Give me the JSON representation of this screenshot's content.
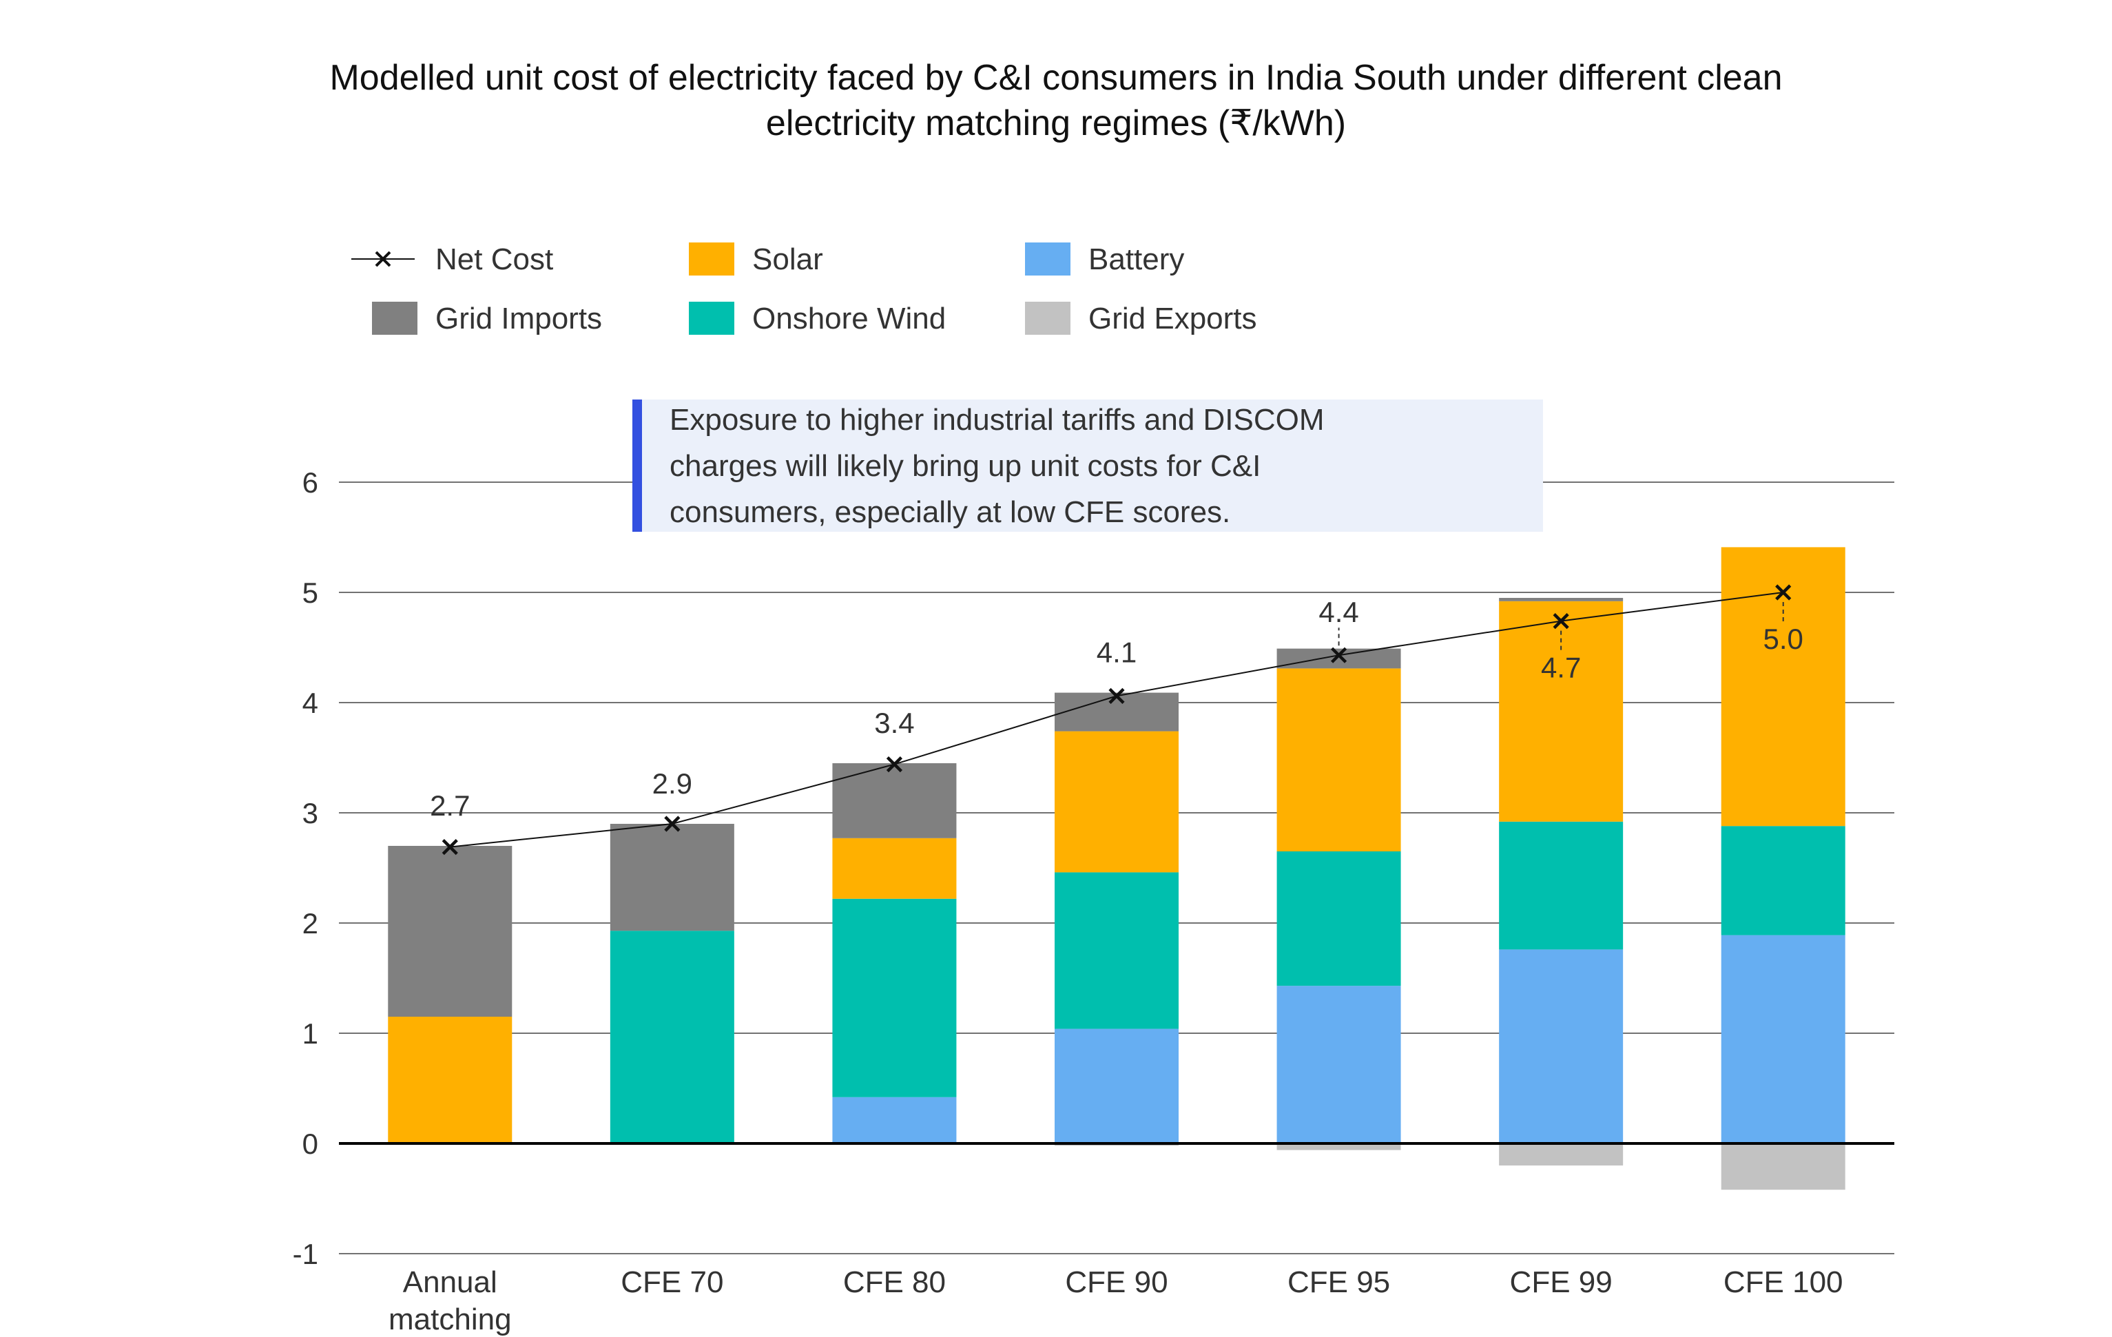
{
  "chart_data": {
    "type": "bar",
    "stacked": true,
    "title_lines": [
      "Modelled unit cost of electricity faced by C&I consumers in India South under different clean",
      "electricity matching regimes (₹/kWh)"
    ],
    "categories": [
      [
        "Annual",
        "matching"
      ],
      [
        "CFE 70"
      ],
      [
        "CFE 80"
      ],
      [
        "CFE 90"
      ],
      [
        "CFE 95"
      ],
      [
        "CFE 99"
      ],
      [
        "CFE 100"
      ]
    ],
    "ylim": [
      -1,
      6
    ],
    "yticks": [
      -1,
      0,
      1,
      2,
      3,
      4,
      5,
      6
    ],
    "grid": true,
    "legend_position": "top-left",
    "series": [
      {
        "name": "Battery",
        "color": "#66AEF2",
        "values": [
          0,
          0,
          0.42,
          1.04,
          1.43,
          1.76,
          1.89
        ]
      },
      {
        "name": "Onshore Wind",
        "color": "#00BFAE",
        "values": [
          0,
          1.93,
          1.8,
          1.42,
          1.22,
          1.16,
          0.99
        ]
      },
      {
        "name": "Solar",
        "color": "#FFB000",
        "values": [
          1.15,
          0,
          0.55,
          1.28,
          1.66,
          2.0,
          2.53
        ]
      },
      {
        "name": "Grid Imports",
        "color": "#808080",
        "values": [
          1.55,
          0.97,
          0.68,
          0.35,
          0.18,
          0.03,
          0.0
        ]
      },
      {
        "name": "Grid Exports",
        "color": "#C2C2C2",
        "values": [
          0,
          0,
          0,
          -0.02,
          -0.06,
          -0.2,
          -0.42
        ]
      }
    ],
    "net_cost": {
      "name": "Net Cost",
      "color": "#111111",
      "values": [
        2.7,
        2.9,
        3.4,
        4.1,
        4.4,
        4.7,
        5.0
      ],
      "positions": [
        2.69,
        2.9,
        3.44,
        4.06,
        4.43,
        4.74,
        5.0
      ],
      "labels": [
        "2.7",
        "2.9",
        "3.4",
        "4.1",
        "4.4",
        "4.7",
        "5.0"
      ]
    },
    "legend": [
      {
        "name": "Net Cost",
        "kind": "line-marker",
        "color": "#111111"
      },
      {
        "name": "Solar",
        "kind": "swatch",
        "color": "#FFB000"
      },
      {
        "name": "Battery",
        "kind": "swatch",
        "color": "#66AEF2"
      },
      {
        "name": "Grid Imports",
        "kind": "swatch",
        "color": "#808080"
      },
      {
        "name": "Onshore Wind",
        "kind": "swatch",
        "color": "#00BFAE"
      },
      {
        "name": "Grid Exports",
        "kind": "swatch",
        "color": "#C2C2C2"
      }
    ],
    "annotation": {
      "lines": [
        "Exposure to higher industrial tariffs and DISCOM",
        "charges will likely bring up unit costs for C&I",
        "consumers, especially at low CFE scores."
      ],
      "accent_color": "#3350E0",
      "background_color": "#EBF0FA"
    }
  }
}
